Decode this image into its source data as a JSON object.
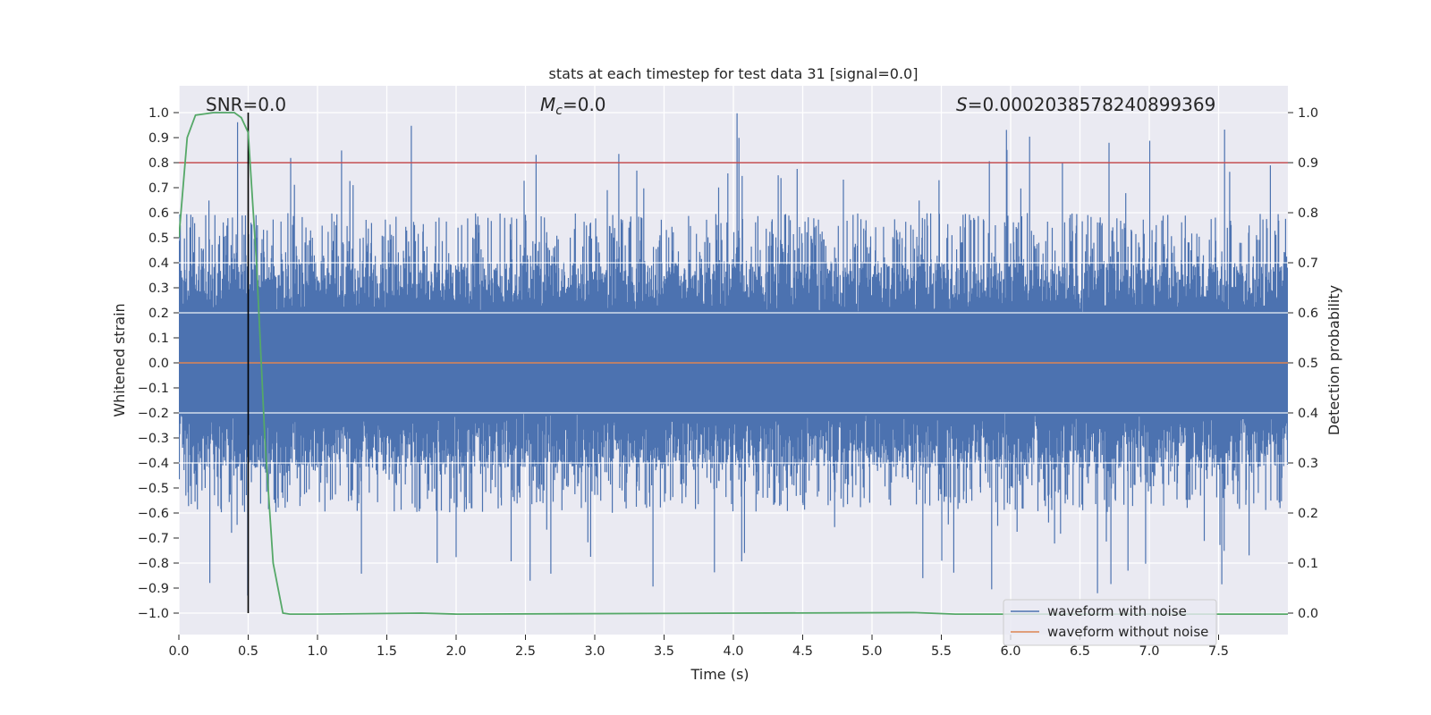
{
  "chart_data": {
    "type": "line",
    "title": "stats at each timestep for test data 31 [signal=0.0]",
    "xlabel": "Time (s)",
    "ylabel": "Whitened strain",
    "ylabel_right": "Detection probability",
    "xlim": [
      0.0,
      8.0
    ],
    "ylim": [
      -1.1,
      1.1
    ],
    "ylim_right": [
      -0.05,
      1.05
    ],
    "xticks": [
      "0.0",
      "0.5",
      "1.0",
      "1.5",
      "2.0",
      "2.5",
      "3.0",
      "3.5",
      "4.0",
      "4.5",
      "5.0",
      "5.5",
      "6.0",
      "6.5",
      "7.0",
      "7.5"
    ],
    "yticks": [
      "1.0",
      "0.9",
      "0.8",
      "0.7",
      "0.6",
      "0.5",
      "0.4",
      "0.3",
      "0.2",
      "0.1",
      "0.0",
      "-0.1",
      "-0.2",
      "-0.3",
      "-0.4",
      "-0.5",
      "-0.6",
      "-0.7",
      "-0.8",
      "-0.9",
      "-1.0"
    ],
    "yticks_right": [
      "1.0",
      "0.9",
      "0.8",
      "0.7",
      "0.6",
      "0.5",
      "0.4",
      "0.3",
      "0.2",
      "0.1",
      "0.0"
    ],
    "annotations": {
      "snr": "SNR=0.0",
      "mc_symbol": "M",
      "mc_subscript": "c",
      "mc_value": "=0.0",
      "s_symbol": "S",
      "s_value": "=0.0002038578240899369"
    },
    "series": [
      {
        "name": "waveform with noise",
        "axis": "left",
        "color": "#4c72b0",
        "description": "dense whitened strain noise, envelope approx +/-0.4 with spikes up to 1.0 and down to -0.94"
      },
      {
        "name": "waveform without noise",
        "axis": "left",
        "color": "#dd8452",
        "values_constant": 0.0
      },
      {
        "name": "detection probability",
        "axis": "right",
        "color": "#55a868",
        "x": [
          0.0,
          0.06,
          0.12,
          0.25,
          0.4,
          0.45,
          0.5,
          0.56,
          0.62,
          0.68,
          0.75,
          0.8,
          1.0,
          1.75,
          2.0,
          5.3,
          5.6,
          8.0
        ],
        "y": [
          0.75,
          0.95,
          0.995,
          1.0,
          1.0,
          0.99,
          0.96,
          0.7,
          0.35,
          0.1,
          0.0,
          -0.002,
          -0.002,
          0.0,
          -0.002,
          0.001,
          -0.002,
          -0.002
        ]
      }
    ],
    "hlines": [
      {
        "name": "threshold",
        "axis": "right",
        "y": 0.9,
        "color": "#c44e52"
      }
    ],
    "vlines": [
      {
        "name": "marker",
        "x": 0.5,
        "color": "#000000"
      }
    ],
    "legend": {
      "location": "lower-right",
      "entries": [
        "waveform with noise",
        "waveform without noise"
      ],
      "colors": [
        "#4c72b0",
        "#dd8452"
      ]
    },
    "style": {
      "background": "#eaeaf2",
      "grid_color": "#ffffff"
    }
  }
}
